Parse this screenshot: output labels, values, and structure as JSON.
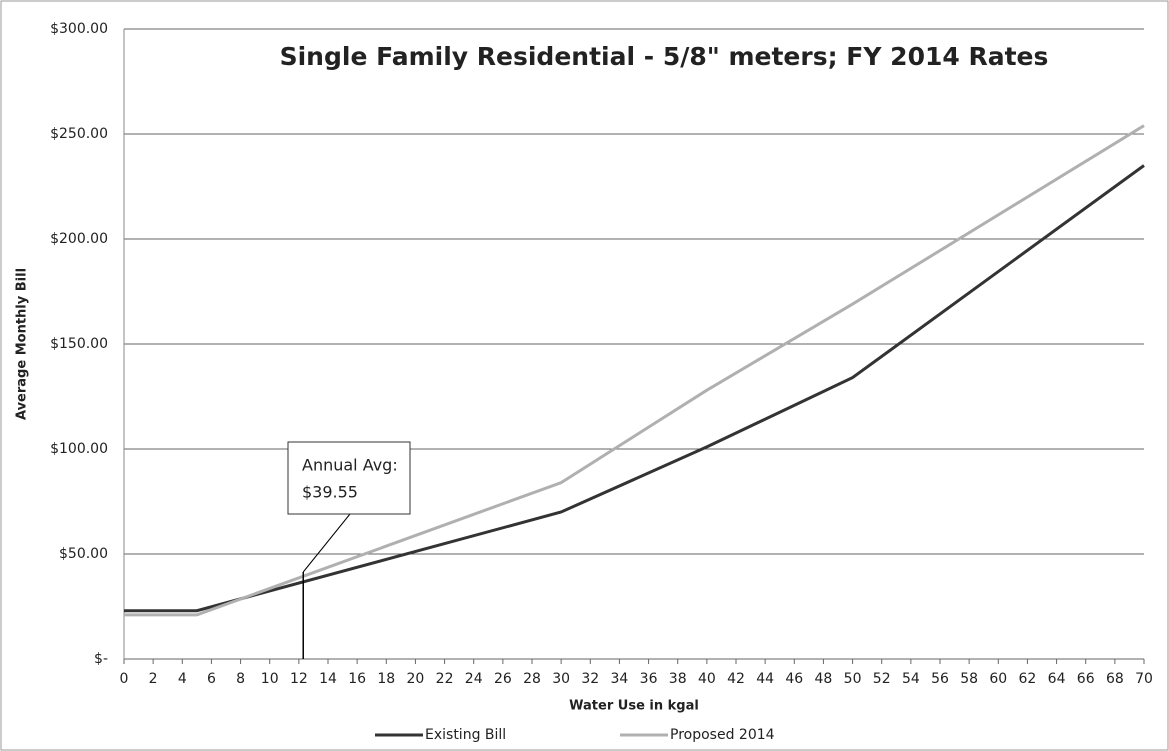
{
  "chart_data": {
    "type": "line",
    "title": "Single Family Residential - 5/8\" meters; FY 2014 Rates",
    "x_label": "Water Use in kgal",
    "y_label": "Average Monthly Bill",
    "xlim": [
      0,
      70
    ],
    "xticks": [
      0,
      2,
      4,
      6,
      8,
      10,
      12,
      14,
      16,
      18,
      20,
      22,
      24,
      26,
      28,
      30,
      32,
      34,
      36,
      38,
      40,
      42,
      44,
      46,
      48,
      50,
      52,
      54,
      56,
      58,
      60,
      62,
      64,
      66,
      68,
      70
    ],
    "ylim": [
      0,
      300
    ],
    "yticks": [
      {
        "value": 0,
        "label": "$-"
      },
      {
        "value": 50,
        "label": "$50.00"
      },
      {
        "value": 100,
        "label": "$100.00"
      },
      {
        "value": 150,
        "label": "$150.00"
      },
      {
        "value": 200,
        "label": "$200.00"
      },
      {
        "value": 250,
        "label": "$250.00"
      },
      {
        "value": 300,
        "label": "$300.00"
      }
    ],
    "grid": true,
    "legend": "bottom",
    "series": [
      {
        "name": "Existing Bill",
        "color": "#333333",
        "x": [
          0,
          5,
          30,
          40,
          50,
          70
        ],
        "values": [
          23,
          23,
          70,
          101,
          134,
          235
        ]
      },
      {
        "name": "Proposed 2014",
        "color": "#b0b0b0",
        "x": [
          0,
          5,
          30,
          40,
          50,
          70
        ],
        "values": [
          21,
          21,
          84,
          128,
          169,
          254
        ]
      }
    ],
    "annotation": {
      "lines": [
        "Annual Avg:",
        "$39.55"
      ],
      "x": 12.3
    }
  }
}
